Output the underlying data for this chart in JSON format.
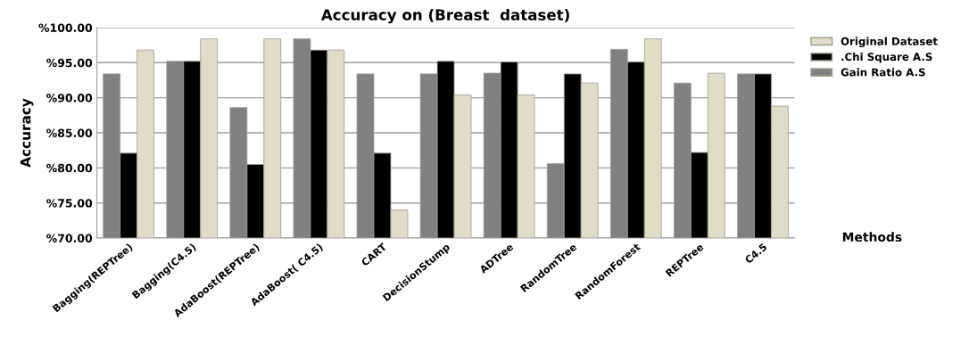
{
  "chart_data": {
    "type": "bar",
    "title": "Accuracy on (Breast  dataset)",
    "xlabel": "Methods",
    "ylabel": "Accuracy",
    "categories": [
      "Bagging(REPTree)",
      "Bagging(C4.5)",
      "AdaBoost(REPTree)",
      "AdaBoost( C4.5)",
      "CART",
      "DecisionStump",
      "ADTree",
      "RandomTree",
      "RandomForest",
      "REPTree",
      "C4.5"
    ],
    "series": [
      {
        "name": "Gain Ratio A.S",
        "color": "#808080",
        "values": [
          93.4,
          95.2,
          88.6,
          98.4,
          93.4,
          93.4,
          93.5,
          80.6,
          96.9,
          92.1,
          93.4
        ]
      },
      {
        "name": ".Chi Square A.S",
        "color": "#000000",
        "values": [
          82.1,
          95.2,
          80.5,
          96.8,
          82.1,
          95.2,
          95.1,
          93.4,
          95.1,
          82.2,
          93.4
        ]
      },
      {
        "name": "Original Dataset",
        "color": "#e0dcc8",
        "values": [
          96.8,
          98.4,
          98.4,
          96.8,
          74.0,
          90.4,
          90.4,
          92.1,
          98.4,
          93.5,
          88.8
        ]
      }
    ],
    "ylim": [
      70,
      100
    ],
    "yticks": [
      {
        "value": 70,
        "label": "%70.00"
      },
      {
        "value": 75,
        "label": "%75.00"
      },
      {
        "value": 80,
        "label": "%80.00"
      },
      {
        "value": 85,
        "label": "%85.00"
      },
      {
        "value": 90,
        "label": "%90.00"
      },
      {
        "value": 95,
        "label": "%95.00"
      },
      {
        "value": 100,
        "label": "%100.00"
      }
    ],
    "grid": "y",
    "legend": "right"
  }
}
